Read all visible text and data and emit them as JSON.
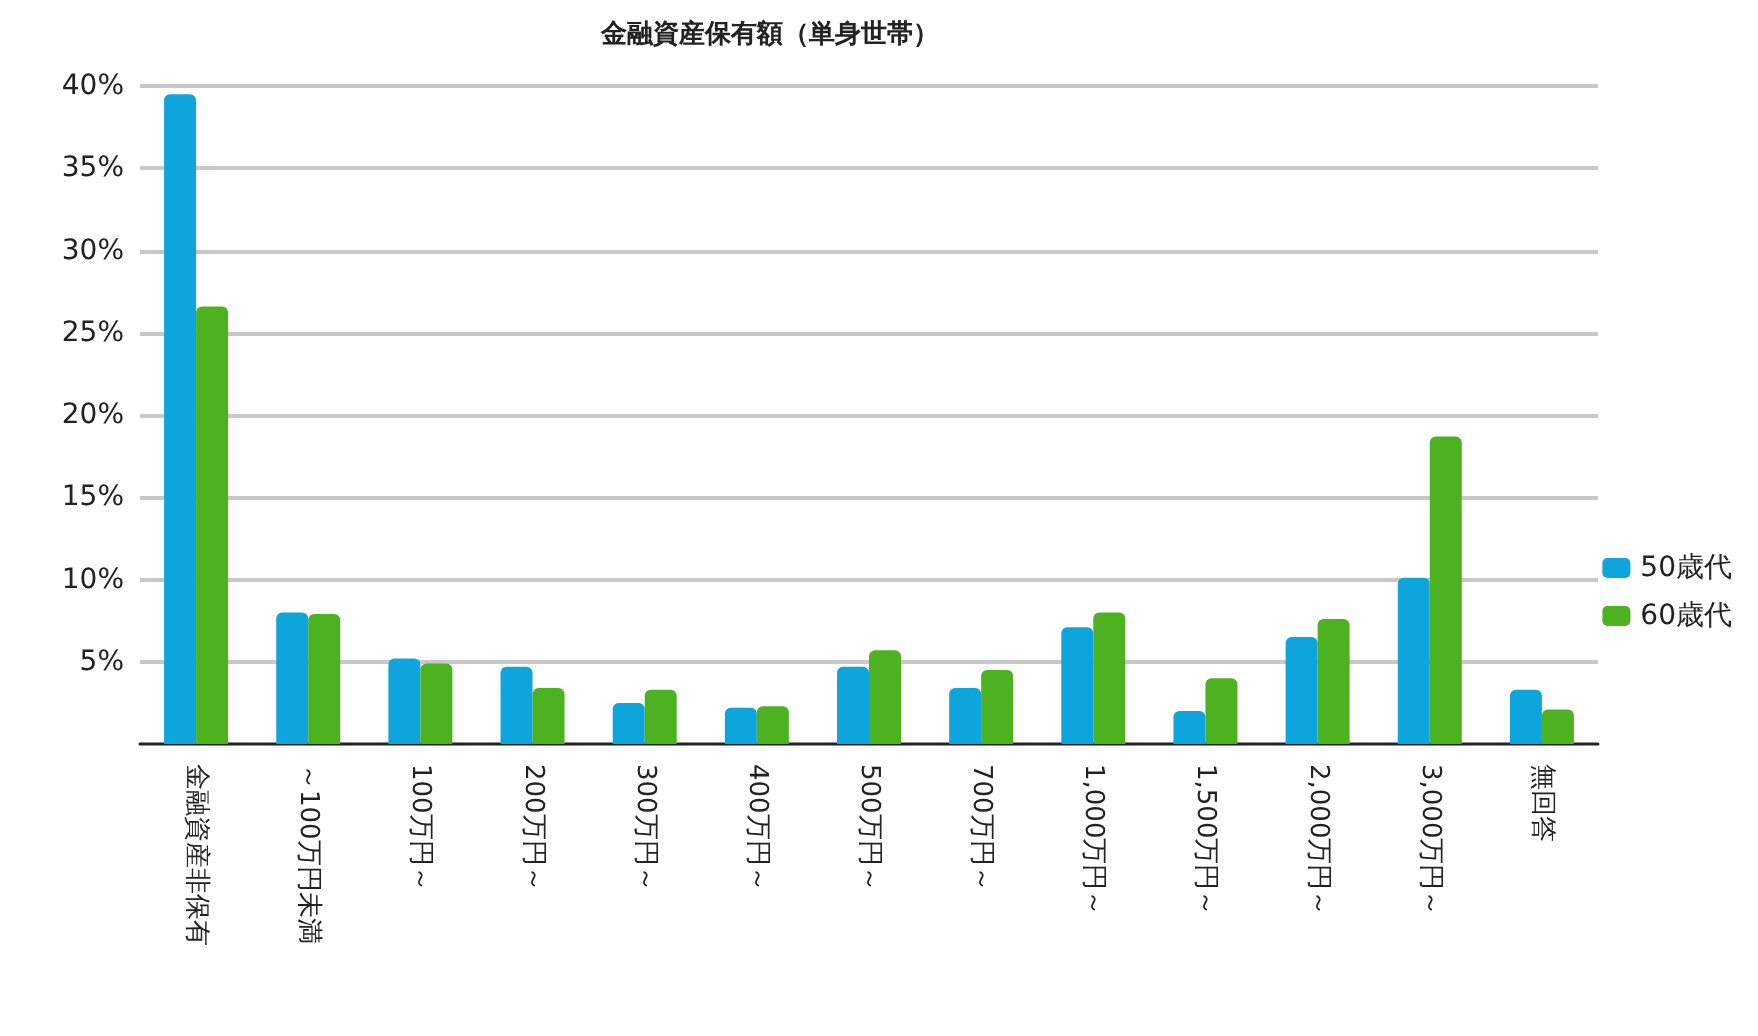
{
  "chart_data": {
    "type": "bar",
    "title": "金融資産保有額（単身世帯）",
    "categories": [
      "金融資産非保有",
      "～100万円未満",
      "100万円～",
      "200万円～",
      "300万円～",
      "400万円～",
      "500万円～",
      "700万円～",
      "1,000万円～",
      "1,500万円～",
      "2,000万円～",
      "3,000万円～",
      "無回答"
    ],
    "series": [
      {
        "name": "50歳代",
        "color": "#0ea5dd",
        "values": [
          39.5,
          8.0,
          5.2,
          4.7,
          2.5,
          2.2,
          4.7,
          3.4,
          7.1,
          2.0,
          6.5,
          10.1,
          3.3
        ]
      },
      {
        "name": "60歳代",
        "color": "#4cb21f",
        "values": [
          26.6,
          7.9,
          4.9,
          3.4,
          3.3,
          2.3,
          5.7,
          4.5,
          8.0,
          4.0,
          7.6,
          18.7,
          2.1
        ]
      }
    ],
    "ylim": [
      0,
      40
    ],
    "yticks": [
      {
        "value": 5,
        "label": "5%"
      },
      {
        "value": 10,
        "label": "10%"
      },
      {
        "value": 15,
        "label": "15%"
      },
      {
        "value": 20,
        "label": "20%"
      },
      {
        "value": 25,
        "label": "25%"
      },
      {
        "value": 30,
        "label": "30%"
      },
      {
        "value": 35,
        "label": "35%"
      },
      {
        "value": 40,
        "label": "40%"
      }
    ],
    "grid": "y",
    "legend": "right"
  }
}
